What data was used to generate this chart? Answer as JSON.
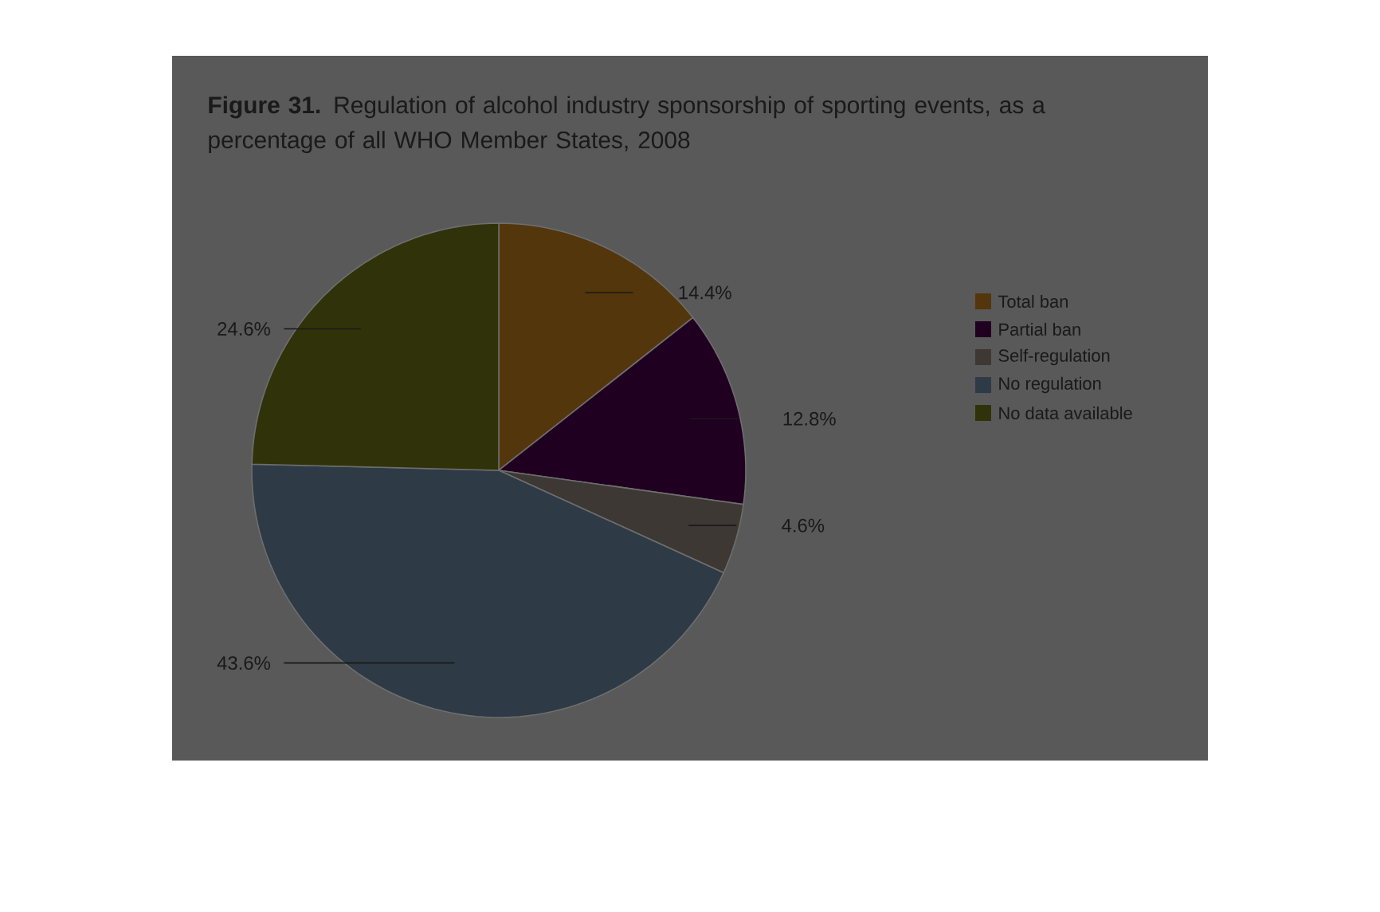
{
  "chart_data": {
    "type": "pie",
    "title": "**Figure 31.** Regulation of alcohol industry sponsorship of sporting events, as a percentage of all WHO Member States, 2008",
    "categories": [
      "Total ban",
      "Partial ban",
      "Self-regulation",
      "No regulation",
      "No data available"
    ],
    "values": [
      14.4,
      12.8,
      4.6,
      43.6,
      24.6
    ],
    "colors": [
      "#53360c",
      "#200020",
      "#3d3833",
      "#2e3a45",
      "#30330a"
    ],
    "value_labels": [
      "14.4%",
      "12.8%",
      "4.6%",
      "43.6%",
      "24.6%"
    ],
    "legend": "right"
  }
}
